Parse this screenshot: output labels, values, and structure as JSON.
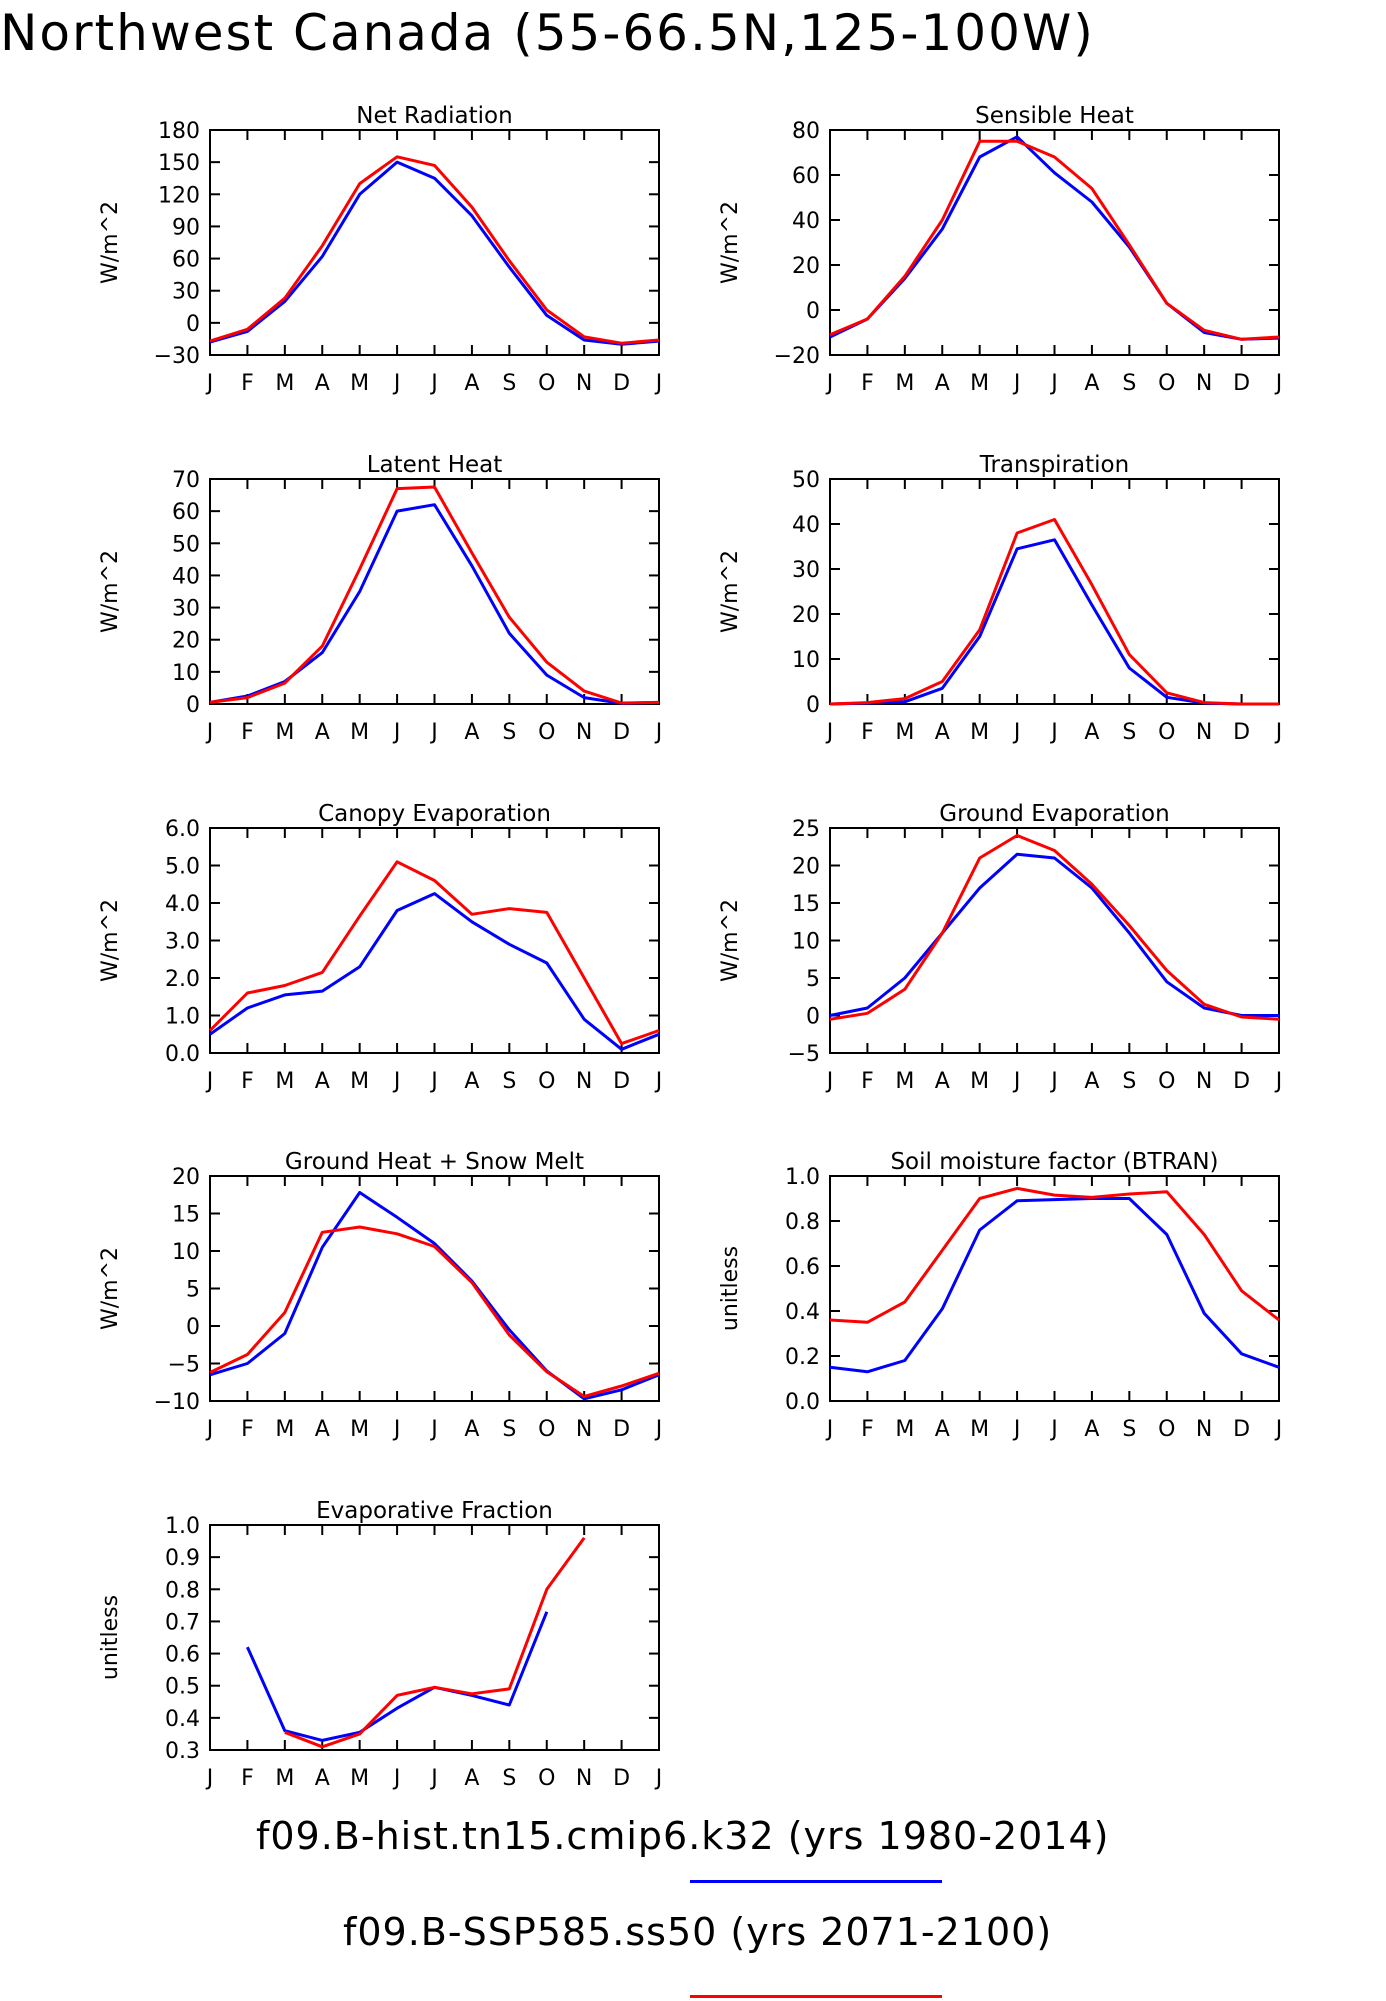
{
  "title": "Northwest Canada (55-66.5N,125-100W)",
  "month_labels": [
    "J",
    "F",
    "M",
    "A",
    "M",
    "J",
    "J",
    "A",
    "S",
    "O",
    "N",
    "D",
    "J"
  ],
  "colors": {
    "case1": "#0000ff",
    "case2": "#ff0000"
  },
  "legend": {
    "case1_label": "f09.B-hist.tn15.cmip6.k32 (yrs 1980-2014)",
    "case2_label": "f09.B-SSP585.ss50 (yrs 2071-2100)"
  },
  "chart_data": [
    {
      "type": "line",
      "title": "Net Radiation",
      "ylabel": "W/m^2",
      "ylim": [
        -30,
        180
      ],
      "yticks": [
        -30,
        0,
        30,
        60,
        90,
        120,
        150,
        180
      ],
      "ytick_labels": [
        "−30",
        "0",
        "30",
        "60",
        "90",
        "120",
        "150",
        "180"
      ],
      "categories": [
        "J",
        "F",
        "M",
        "A",
        "M",
        "J",
        "J",
        "A",
        "S",
        "O",
        "N",
        "D",
        "J"
      ],
      "series": [
        {
          "values": [
            -18,
            -8,
            20,
            62,
            120,
            150,
            135,
            100,
            52,
            7,
            -16,
            -20,
            -17
          ]
        },
        {
          "values": [
            -17,
            -6,
            23,
            72,
            130,
            155,
            147,
            108,
            58,
            12,
            -13,
            -19,
            -16
          ]
        }
      ]
    },
    {
      "type": "line",
      "title": "Sensible Heat",
      "ylabel": "W/m^2",
      "ylim": [
        -20,
        80
      ],
      "yticks": [
        -20,
        0,
        20,
        40,
        60,
        80
      ],
      "ytick_labels": [
        "−20",
        "0",
        "20",
        "40",
        "60",
        "80"
      ],
      "categories": [
        "J",
        "F",
        "M",
        "A",
        "M",
        "J",
        "J",
        "A",
        "S",
        "O",
        "N",
        "D",
        "J"
      ],
      "series": [
        {
          "values": [
            -12,
            -4,
            14,
            36,
            68,
            77,
            61,
            48,
            28,
            3,
            -10,
            -13,
            -12.5
          ]
        },
        {
          "values": [
            -11,
            -4,
            15,
            40,
            75,
            75,
            68,
            54,
            29,
            3,
            -9,
            -13,
            -12
          ]
        }
      ]
    },
    {
      "type": "line",
      "title": "Latent Heat",
      "ylabel": "W/m^2",
      "ylim": [
        0,
        70
      ],
      "yticks": [
        0,
        10,
        20,
        30,
        40,
        50,
        60,
        70
      ],
      "ytick_labels": [
        "0",
        "10",
        "20",
        "30",
        "40",
        "50",
        "60",
        "70"
      ],
      "categories": [
        "J",
        "F",
        "M",
        "A",
        "M",
        "J",
        "J",
        "A",
        "S",
        "O",
        "N",
        "D",
        "J"
      ],
      "series": [
        {
          "values": [
            0.5,
            2.5,
            7,
            16,
            35,
            60,
            62,
            43,
            22,
            9,
            2,
            0.2,
            0.5
          ]
        },
        {
          "values": [
            0.5,
            2,
            6.5,
            18,
            42,
            67,
            67.5,
            47,
            27,
            13,
            4,
            0.3,
            0.5
          ]
        }
      ]
    },
    {
      "type": "line",
      "title": "Transpiration",
      "ylabel": "W/m^2",
      "ylim": [
        0,
        50
      ],
      "yticks": [
        0,
        10,
        20,
        30,
        40,
        50
      ],
      "ytick_labels": [
        "0",
        "10",
        "20",
        "30",
        "40",
        "50"
      ],
      "categories": [
        "J",
        "F",
        "M",
        "A",
        "M",
        "J",
        "J",
        "A",
        "S",
        "O",
        "N",
        "D",
        "J"
      ],
      "series": [
        {
          "values": [
            0,
            0.2,
            0.5,
            3.5,
            15,
            34.5,
            36.5,
            22,
            8,
            1.5,
            0.2,
            0,
            0
          ]
        },
        {
          "values": [
            0,
            0.3,
            1.2,
            5,
            16.5,
            38,
            41,
            26.5,
            11,
            2.5,
            0.3,
            0,
            0
          ]
        }
      ]
    },
    {
      "type": "line",
      "title": "Canopy Evaporation",
      "ylabel": "W/m^2",
      "ylim": [
        0,
        6
      ],
      "yticks": [
        0,
        1,
        2,
        3,
        4,
        5,
        6
      ],
      "ytick_labels": [
        "0.0",
        "1.0",
        "2.0",
        "3.0",
        "4.0",
        "5.0",
        "6.0"
      ],
      "categories": [
        "J",
        "F",
        "M",
        "A",
        "M",
        "J",
        "J",
        "A",
        "S",
        "O",
        "N",
        "D",
        "J"
      ],
      "series": [
        {
          "values": [
            0.5,
            1.2,
            1.55,
            1.65,
            2.3,
            3.8,
            4.25,
            3.5,
            2.9,
            2.4,
            0.9,
            0.1,
            0.5
          ]
        },
        {
          "values": [
            0.6,
            1.6,
            1.8,
            2.15,
            3.65,
            5.1,
            4.6,
            3.7,
            3.85,
            3.75,
            2.0,
            0.25,
            0.6
          ]
        }
      ]
    },
    {
      "type": "line",
      "title": "Ground Evaporation",
      "ylabel": "W/m^2",
      "ylim": [
        -5,
        25
      ],
      "yticks": [
        -5,
        0,
        5,
        10,
        15,
        20,
        25
      ],
      "ytick_labels": [
        "−5",
        "0",
        "5",
        "10",
        "15",
        "20",
        "25"
      ],
      "categories": [
        "J",
        "F",
        "M",
        "A",
        "M",
        "J",
        "J",
        "A",
        "S",
        "O",
        "N",
        "D",
        "J"
      ],
      "series": [
        {
          "values": [
            0,
            1,
            5,
            11,
            17,
            21.5,
            21,
            17,
            11,
            4.5,
            1,
            0,
            0
          ]
        },
        {
          "values": [
            -0.5,
            0.3,
            3.5,
            11,
            21,
            24,
            22,
            17.5,
            12,
            6,
            1.5,
            -0.2,
            -0.5
          ]
        }
      ]
    },
    {
      "type": "line",
      "title": "Ground Heat + Snow Melt",
      "ylabel": "W/m^2",
      "ylim": [
        -10,
        20
      ],
      "yticks": [
        -10,
        -5,
        0,
        5,
        10,
        15,
        20
      ],
      "ytick_labels": [
        "−10",
        "−5",
        "0",
        "5",
        "10",
        "15",
        "20"
      ],
      "categories": [
        "J",
        "F",
        "M",
        "A",
        "M",
        "J",
        "J",
        "A",
        "S",
        "O",
        "N",
        "D",
        "J"
      ],
      "series": [
        {
          "values": [
            -6.5,
            -5,
            -1,
            10.5,
            17.8,
            14.5,
            11,
            6,
            -0.5,
            -6,
            -9.7,
            -8.5,
            -6.5
          ]
        },
        {
          "values": [
            -6.2,
            -3.8,
            1.8,
            12.5,
            13.2,
            12.3,
            10.6,
            5.8,
            -1.2,
            -6.1,
            -9.4,
            -8,
            -6.3
          ]
        }
      ]
    },
    {
      "type": "line",
      "title": "Soil moisture factor (BTRAN)",
      "ylabel": "unitless",
      "ylim": [
        0,
        1
      ],
      "yticks": [
        0,
        0.2,
        0.4,
        0.6,
        0.8,
        1.0
      ],
      "ytick_labels": [
        "0.0",
        "0.2",
        "0.4",
        "0.6",
        "0.8",
        "1.0"
      ],
      "categories": [
        "J",
        "F",
        "M",
        "A",
        "M",
        "J",
        "J",
        "A",
        "S",
        "O",
        "N",
        "D",
        "J"
      ],
      "series": [
        {
          "values": [
            0.15,
            0.13,
            0.18,
            0.41,
            0.76,
            0.89,
            0.895,
            0.9,
            0.9,
            0.74,
            0.39,
            0.21,
            0.15
          ]
        },
        {
          "values": [
            0.36,
            0.35,
            0.44,
            0.67,
            0.9,
            0.945,
            0.915,
            0.905,
            0.92,
            0.93,
            0.74,
            0.49,
            0.36
          ]
        }
      ]
    },
    {
      "type": "line",
      "title": "Evaporative Fraction",
      "ylabel": "unitless",
      "ylim": [
        0.3,
        1.0
      ],
      "yticks": [
        0.3,
        0.4,
        0.5,
        0.6,
        0.7,
        0.8,
        0.9,
        1.0
      ],
      "ytick_labels": [
        "0.3",
        "0.4",
        "0.5",
        "0.6",
        "0.7",
        "0.8",
        "0.9",
        "1.0"
      ],
      "categories": [
        "J",
        "F",
        "M",
        "A",
        "M",
        "J",
        "J",
        "A",
        "S",
        "O",
        "N",
        "D",
        "J"
      ],
      "series": [
        {
          "values": [
            null,
            0.62,
            0.36,
            0.33,
            0.355,
            0.43,
            0.495,
            0.47,
            0.44,
            0.73,
            null,
            null,
            null
          ]
        },
        {
          "values": [
            null,
            null,
            0.355,
            0.31,
            0.35,
            0.47,
            0.495,
            0.475,
            0.49,
            0.8,
            0.96,
            null,
            null
          ]
        }
      ]
    }
  ]
}
